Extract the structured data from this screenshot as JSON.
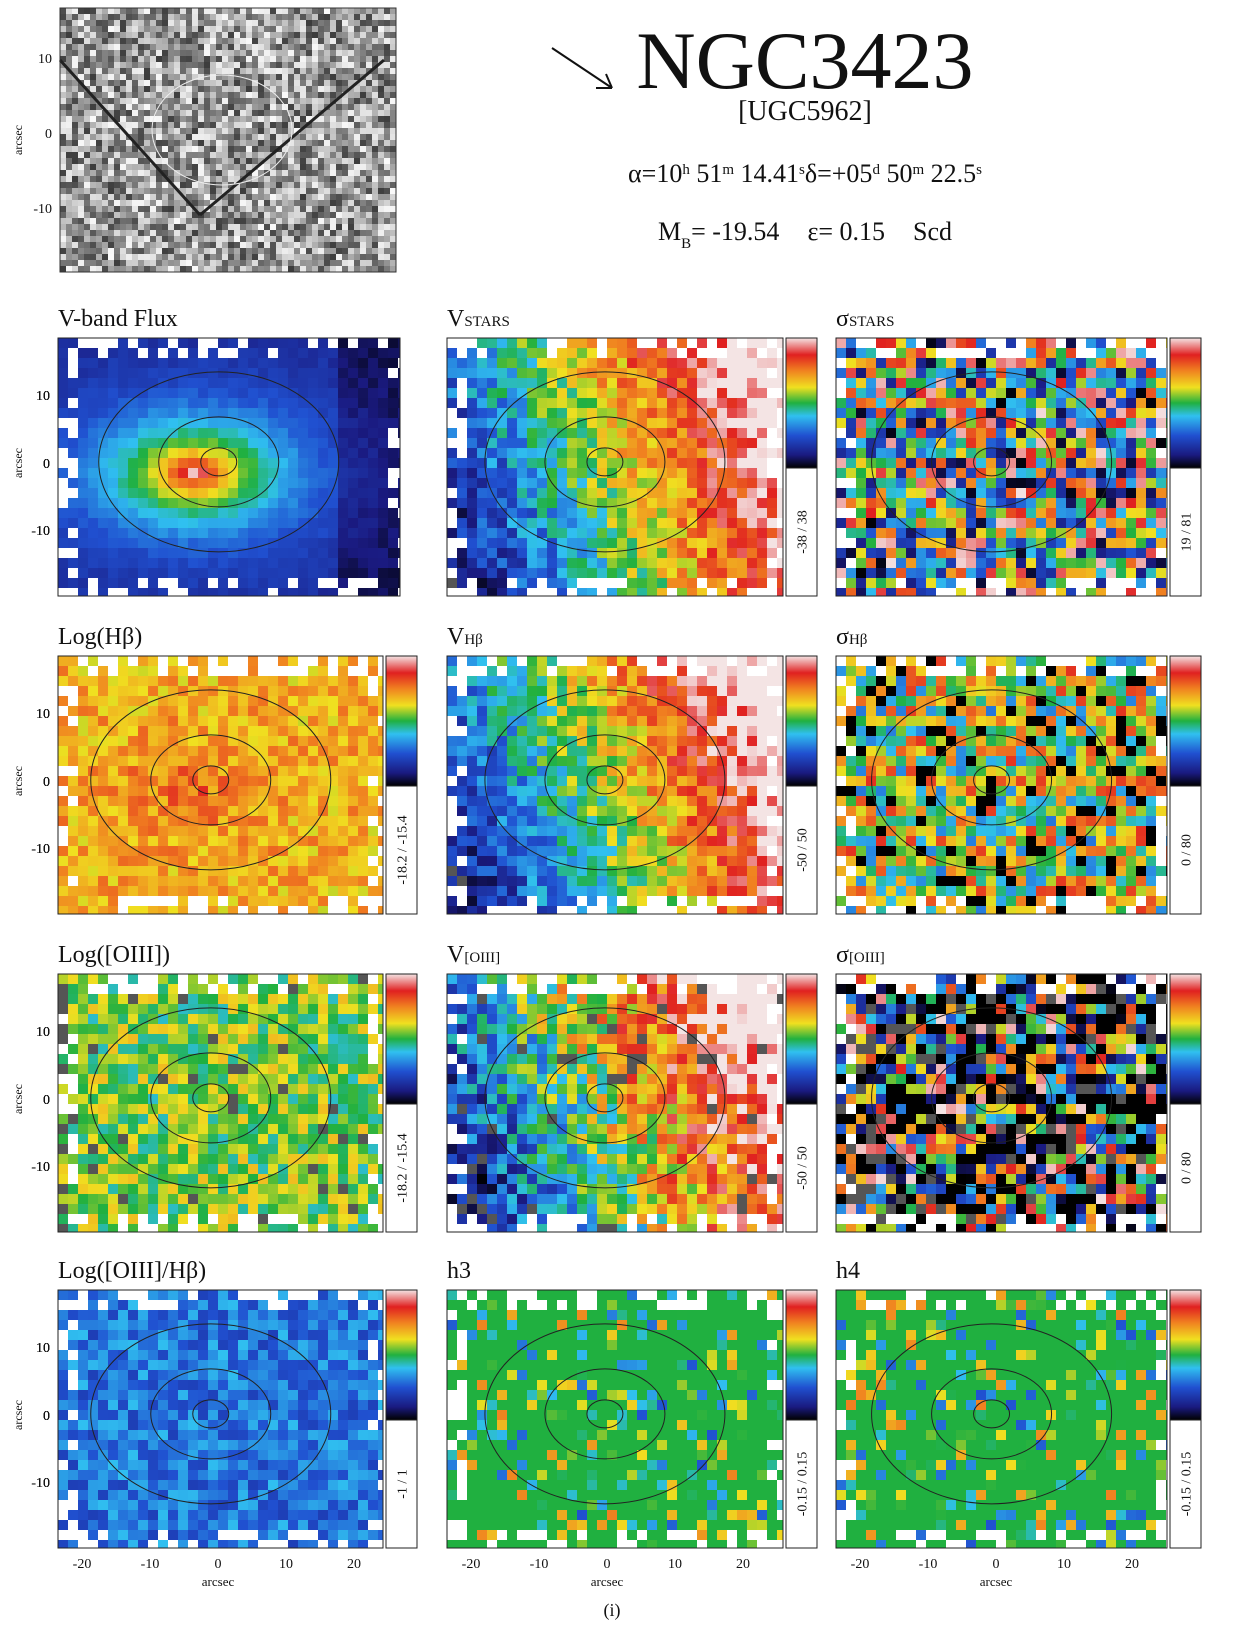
{
  "header": {
    "name": "NGC3423",
    "alt_name": "[UGC5962]",
    "ra": [
      "α=10",
      "h",
      " 51",
      "m",
      " 14.41",
      "s"
    ],
    "dec": [
      "δ=+05",
      "d",
      " 50",
      "m",
      " 22.5",
      "s"
    ],
    "magnitude": [
      "M",
      "B",
      "= -19.54"
    ],
    "ellipticity": "ε= 0.15",
    "morph_type": "Scd"
  },
  "axes": {
    "label": "arcsec",
    "y_ticks": [
      "10",
      "0",
      "-10"
    ],
    "x_ticks": [
      "-20",
      "-10",
      "0",
      "10",
      "20"
    ]
  },
  "panels": [
    {
      "title": "V-band Flux"
    },
    {
      "title": "V",
      "title_sub": "STARS",
      "range": "-38 / 38"
    },
    {
      "title": "σ",
      "title_sub": "STARS",
      "range": "19 / 81"
    },
    {
      "title": "Log(Hβ)",
      "range": "-18.2 / -15.4"
    },
    {
      "title": "V",
      "title_sub": "Hβ",
      "range": "-50 / 50"
    },
    {
      "title": "σ",
      "title_sub": "Hβ",
      "range": "0 / 80"
    },
    {
      "title": "Log([OIII])",
      "range": "-18.2 / -15.4"
    },
    {
      "title": "V",
      "title_sub": "[OIII]",
      "range": "-50 / 50"
    },
    {
      "title": "σ",
      "title_sub": "[OIII]",
      "range": "0 / 80"
    },
    {
      "title": "Log([OIII]/Hβ)",
      "range": "-1 / 1"
    },
    {
      "title": "h3",
      "range": "-0.15 / 0.15"
    },
    {
      "title": "h4",
      "range": "-0.15 / 0.15"
    }
  ],
  "caption": "(i)"
}
